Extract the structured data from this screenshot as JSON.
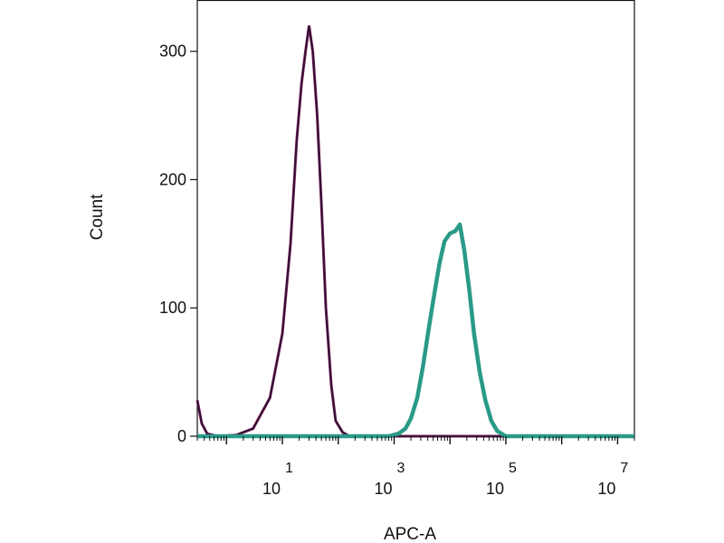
{
  "chart_data": {
    "type": "line",
    "xlabel": "APC-A",
    "ylabel": "Count",
    "x_scale": "log",
    "xlim": [
      0.3,
      20000000
    ],
    "ylim": [
      0,
      340
    ],
    "grid": false,
    "y_ticks": [
      {
        "value": 0,
        "label": "0"
      },
      {
        "value": 100,
        "label": "100"
      },
      {
        "value": 200,
        "label": "200"
      },
      {
        "value": 300,
        "label": "300"
      }
    ],
    "x_ticks": [
      {
        "value": 10,
        "base": "10",
        "exp": "1"
      },
      {
        "value": 1000,
        "base": "10",
        "exp": "3"
      },
      {
        "value": 100000,
        "base": "10",
        "exp": "5"
      },
      {
        "value": 10000000,
        "base": "10",
        "exp": "7"
      }
    ],
    "series": [
      {
        "color": "#2a1030",
        "stroke": "#7a1f5a",
        "points": [
          [
            0.3,
            28
          ],
          [
            0.36,
            10
          ],
          [
            0.45,
            2
          ],
          [
            0.7,
            0
          ],
          [
            1.5,
            1
          ],
          [
            3,
            6
          ],
          [
            6,
            30
          ],
          [
            10,
            80
          ],
          [
            14,
            150
          ],
          [
            18,
            230
          ],
          [
            22,
            275
          ],
          [
            26,
            300
          ],
          [
            30,
            320
          ],
          [
            35,
            300
          ],
          [
            42,
            250
          ],
          [
            50,
            180
          ],
          [
            60,
            100
          ],
          [
            75,
            40
          ],
          [
            90,
            12
          ],
          [
            120,
            3
          ],
          [
            160,
            0
          ],
          [
            250,
            0
          ],
          [
            600,
            0
          ],
          [
            20000000,
            0
          ]
        ]
      },
      {
        "color": "#2a9a88",
        "points": [
          [
            0.3,
            0
          ],
          [
            800,
            0
          ],
          [
            1200,
            2
          ],
          [
            1600,
            6
          ],
          [
            2000,
            14
          ],
          [
            2600,
            30
          ],
          [
            3300,
            55
          ],
          [
            4200,
            85
          ],
          [
            5200,
            110
          ],
          [
            6500,
            135
          ],
          [
            8000,
            152
          ],
          [
            10000,
            158
          ],
          [
            12500,
            160
          ],
          [
            15000,
            165
          ],
          [
            18000,
            145
          ],
          [
            22000,
            115
          ],
          [
            27000,
            80
          ],
          [
            34000,
            50
          ],
          [
            43000,
            28
          ],
          [
            55000,
            12
          ],
          [
            70000,
            4
          ],
          [
            100000,
            0
          ],
          [
            20000000,
            0
          ]
        ]
      }
    ]
  }
}
